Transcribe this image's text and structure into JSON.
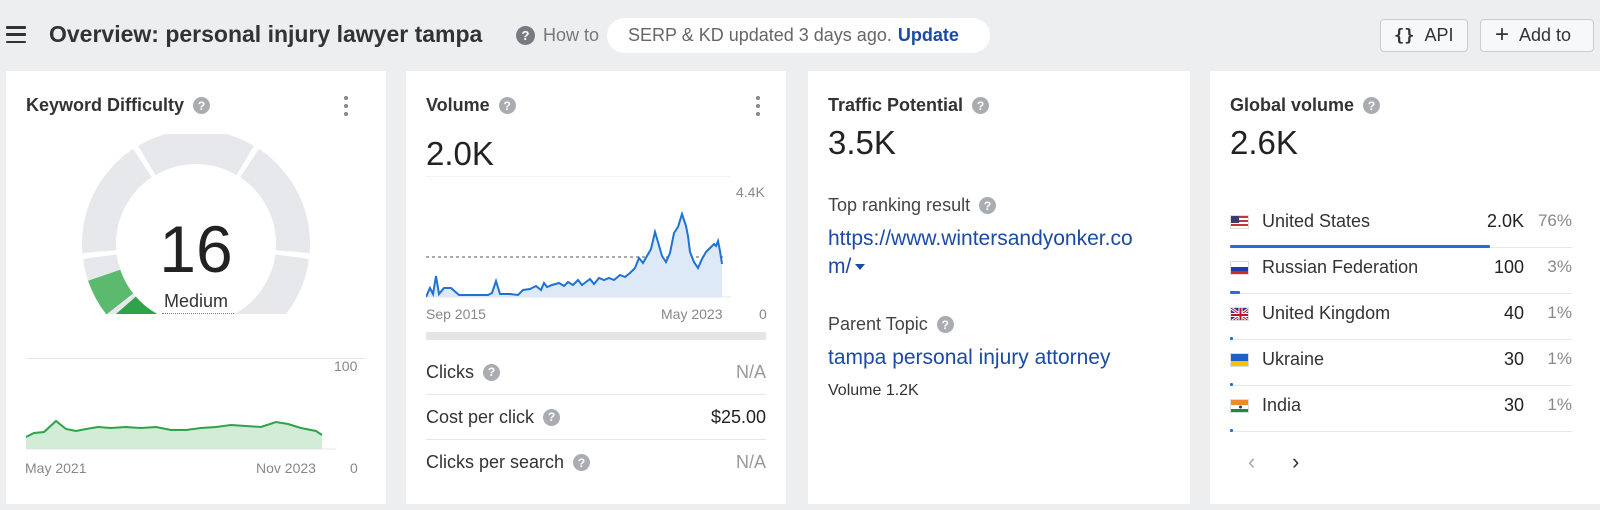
{
  "header": {
    "title": "Overview: personal injury lawyer tampa",
    "how_to": "How to",
    "serp_status": "SERP & KD updated 3 days ago.",
    "update_label": "Update",
    "api_label": "API",
    "api_icon": "{}",
    "add_label": "Add to"
  },
  "keyword_difficulty": {
    "title": "Keyword Difficulty",
    "value": "16",
    "level": "Medium",
    "score": 16,
    "chart_max_label": "100",
    "chart_min_label": "0",
    "x_start": "May 2021",
    "x_end": "Nov 2023",
    "accent": "#2fa24a"
  },
  "volume": {
    "title": "Volume",
    "value": "2.0K",
    "chart_max_label": "4.4K",
    "chart_min_label": "0",
    "x_start": "Sep 2015",
    "x_end": "May 2023",
    "metrics": [
      {
        "label": "Clicks",
        "value": "N/A"
      },
      {
        "label": "Cost per click",
        "value": "$25.00"
      },
      {
        "label": "Clicks per search",
        "value": "N/A"
      }
    ],
    "line_color": "#1e72d6"
  },
  "traffic_potential": {
    "title": "Traffic Potential",
    "value": "3.5K",
    "top_result_label": "Top ranking result",
    "top_result_url_line1": "https://www.wintersandyonker.co",
    "top_result_url_line2": "m/",
    "parent_topic_label": "Parent Topic",
    "parent_topic": "tampa personal injury attorney",
    "parent_volume": "Volume 1.2K"
  },
  "global_volume": {
    "title": "Global volume",
    "value": "2.6K",
    "countries": [
      {
        "name": "United States",
        "volume": "2.0K",
        "pct": "76%",
        "share": 76,
        "flag": "us-flag"
      },
      {
        "name": "Russian Federation",
        "volume": "100",
        "pct": "3%",
        "share": 3,
        "flag": "ru-flag"
      },
      {
        "name": "United Kingdom",
        "volume": "40",
        "pct": "1%",
        "share": 1,
        "flag": "gb-flag"
      },
      {
        "name": "Ukraine",
        "volume": "30",
        "pct": "1%",
        "share": 1,
        "flag": "ua-flag"
      },
      {
        "name": "India",
        "volume": "30",
        "pct": "1%",
        "share": 1,
        "flag": "in-flag"
      }
    ]
  }
}
